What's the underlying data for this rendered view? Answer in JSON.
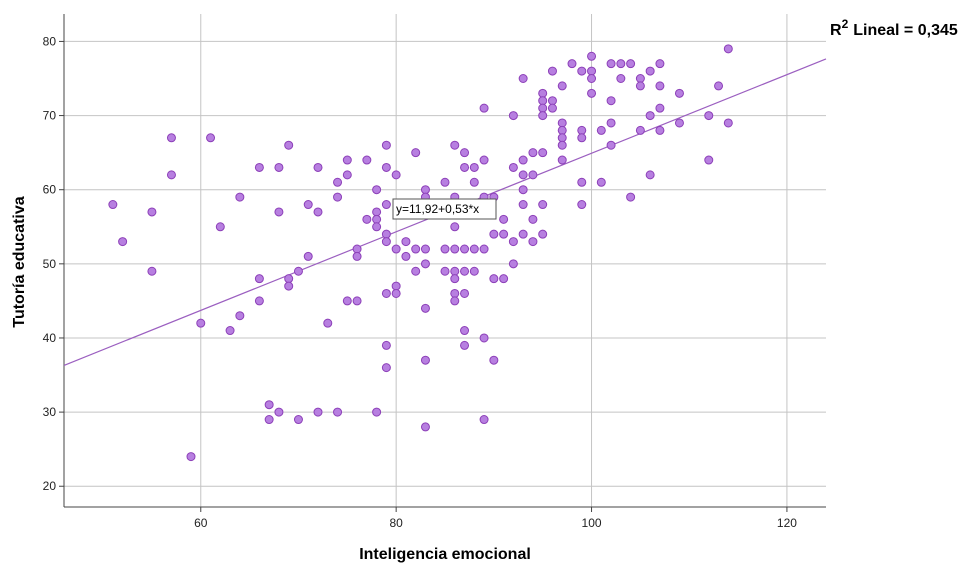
{
  "chart_data": {
    "type": "scatter",
    "xlabel": "Inteligencia emocional",
    "ylabel": "Tutoría educativa",
    "xlim": [
      46,
      124
    ],
    "ylim": [
      17.2,
      83.7
    ],
    "xticks": [
      60,
      80,
      100,
      120
    ],
    "yticks": [
      20,
      30,
      40,
      50,
      60,
      70,
      80
    ],
    "grid": true,
    "point_color": "#b77fe0",
    "point_edge_color": "#8c3fb8",
    "line_color": "#9b5fc0",
    "fit_line": {
      "intercept": 11.92,
      "slope": 0.53
    },
    "equation_label": "y=11,92+0,53*x",
    "r2_label": "R",
    "r2_superscript": "2",
    "r2_value": "Lineal = 0,345",
    "points": [
      [
        51,
        58
      ],
      [
        52,
        53
      ],
      [
        55,
        57
      ],
      [
        55,
        49
      ],
      [
        57,
        67
      ],
      [
        57,
        62
      ],
      [
        59,
        24
      ],
      [
        60,
        42
      ],
      [
        61,
        67
      ],
      [
        62,
        55
      ],
      [
        63,
        41
      ],
      [
        64,
        43
      ],
      [
        64,
        59
      ],
      [
        66,
        63
      ],
      [
        66,
        48
      ],
      [
        66,
        45
      ],
      [
        67,
        31
      ],
      [
        67,
        29
      ],
      [
        68,
        63
      ],
      [
        68,
        57
      ],
      [
        68,
        30
      ],
      [
        69,
        66
      ],
      [
        69,
        48
      ],
      [
        69,
        47
      ],
      [
        70,
        49
      ],
      [
        70,
        29
      ],
      [
        71,
        58
      ],
      [
        71,
        51
      ],
      [
        72,
        63
      ],
      [
        72,
        57
      ],
      [
        72,
        30
      ],
      [
        73,
        42
      ],
      [
        74,
        61
      ],
      [
        74,
        59
      ],
      [
        74,
        30
      ],
      [
        75,
        64
      ],
      [
        75,
        62
      ],
      [
        75,
        45
      ],
      [
        76,
        52
      ],
      [
        76,
        51
      ],
      [
        76,
        45
      ],
      [
        77,
        64
      ],
      [
        77,
        56
      ],
      [
        78,
        60
      ],
      [
        78,
        57
      ],
      [
        78,
        56
      ],
      [
        78,
        55
      ],
      [
        78,
        30
      ],
      [
        79,
        66
      ],
      [
        79,
        63
      ],
      [
        79,
        58
      ],
      [
        79,
        54
      ],
      [
        79,
        53
      ],
      [
        79,
        46
      ],
      [
        79,
        39
      ],
      [
        79,
        36
      ],
      [
        80,
        62
      ],
      [
        80,
        52
      ],
      [
        80,
        47
      ],
      [
        80,
        46
      ],
      [
        81,
        53
      ],
      [
        81,
        51
      ],
      [
        82,
        65
      ],
      [
        82,
        52
      ],
      [
        82,
        49
      ],
      [
        83,
        60
      ],
      [
        83,
        59
      ],
      [
        83,
        52
      ],
      [
        83,
        50
      ],
      [
        83,
        44
      ],
      [
        83,
        37
      ],
      [
        83,
        28
      ],
      [
        85,
        61
      ],
      [
        85,
        57
      ],
      [
        85,
        52
      ],
      [
        85,
        49
      ],
      [
        86,
        66
      ],
      [
        86,
        59
      ],
      [
        86,
        55
      ],
      [
        86,
        52
      ],
      [
        86,
        49
      ],
      [
        86,
        48
      ],
      [
        86,
        46
      ],
      [
        86,
        45
      ],
      [
        87,
        65
      ],
      [
        87,
        63
      ],
      [
        87,
        52
      ],
      [
        87,
        49
      ],
      [
        87,
        46
      ],
      [
        87,
        41
      ],
      [
        87,
        39
      ],
      [
        88,
        63
      ],
      [
        88,
        61
      ],
      [
        88,
        52
      ],
      [
        88,
        49
      ],
      [
        89,
        71
      ],
      [
        89,
        64
      ],
      [
        89,
        59
      ],
      [
        89,
        52
      ],
      [
        89,
        40
      ],
      [
        89,
        29
      ],
      [
        90,
        59
      ],
      [
        90,
        54
      ],
      [
        90,
        48
      ],
      [
        90,
        37
      ],
      [
        91,
        56
      ],
      [
        91,
        54
      ],
      [
        91,
        48
      ],
      [
        92,
        70
      ],
      [
        92,
        63
      ],
      [
        92,
        53
      ],
      [
        92,
        50
      ],
      [
        93,
        75
      ],
      [
        93,
        64
      ],
      [
        93,
        62
      ],
      [
        93,
        60
      ],
      [
        93,
        58
      ],
      [
        93,
        54
      ],
      [
        94,
        65
      ],
      [
        94,
        62
      ],
      [
        94,
        56
      ],
      [
        94,
        53
      ],
      [
        95,
        73
      ],
      [
        95,
        72
      ],
      [
        95,
        71
      ],
      [
        95,
        70
      ],
      [
        95,
        65
      ],
      [
        95,
        58
      ],
      [
        95,
        54
      ],
      [
        96,
        76
      ],
      [
        96,
        72
      ],
      [
        96,
        71
      ],
      [
        97,
        74
      ],
      [
        97,
        69
      ],
      [
        97,
        68
      ],
      [
        97,
        67
      ],
      [
        97,
        66
      ],
      [
        97,
        64
      ],
      [
        98,
        77
      ],
      [
        99,
        76
      ],
      [
        99,
        68
      ],
      [
        99,
        67
      ],
      [
        99,
        61
      ],
      [
        99,
        58
      ],
      [
        100,
        78
      ],
      [
        100,
        76
      ],
      [
        100,
        75
      ],
      [
        100,
        73
      ],
      [
        101,
        68
      ],
      [
        101,
        61
      ],
      [
        102,
        77
      ],
      [
        102,
        72
      ],
      [
        102,
        69
      ],
      [
        102,
        66
      ],
      [
        103,
        77
      ],
      [
        103,
        75
      ],
      [
        104,
        77
      ],
      [
        104,
        59
      ],
      [
        105,
        75
      ],
      [
        105,
        74
      ],
      [
        105,
        68
      ],
      [
        106,
        76
      ],
      [
        106,
        70
      ],
      [
        106,
        62
      ],
      [
        107,
        77
      ],
      [
        107,
        74
      ],
      [
        107,
        71
      ],
      [
        107,
        68
      ],
      [
        109,
        73
      ],
      [
        109,
        69
      ],
      [
        112,
        70
      ],
      [
        112,
        64
      ],
      [
        113,
        74
      ],
      [
        114,
        79
      ],
      [
        114,
        69
      ]
    ]
  }
}
